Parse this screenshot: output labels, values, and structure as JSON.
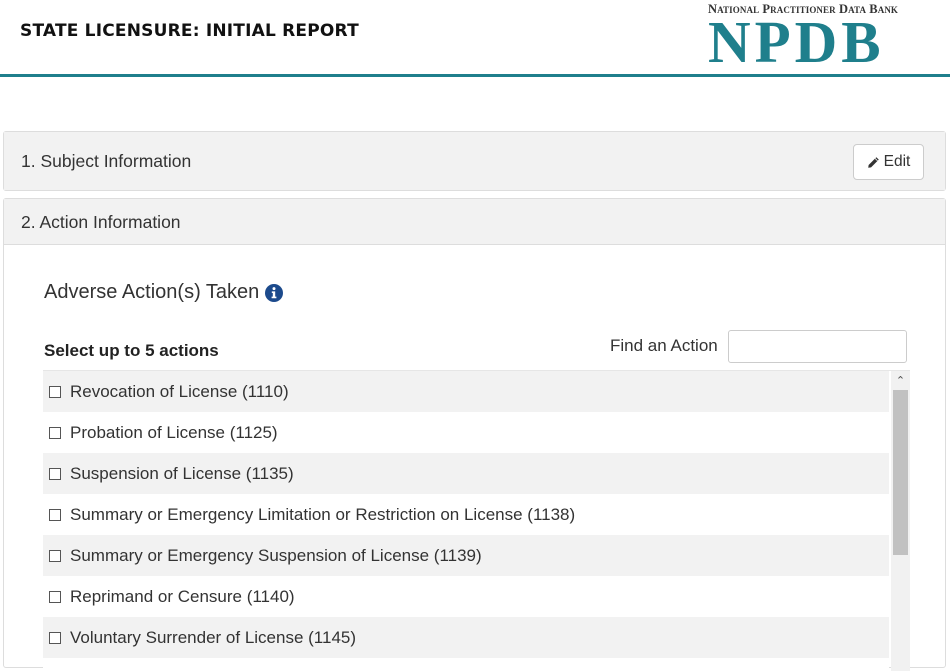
{
  "header": {
    "title": "STATE LICENSURE: INITIAL REPORT",
    "logo_subtitle": "National Practitioner Data Bank",
    "logo_text": "NPDB",
    "brand_color": "#1f7f8c"
  },
  "panels": {
    "subject": {
      "title": "1. Subject Information",
      "edit_label": "Edit",
      "edit_icon": "pencil-icon"
    },
    "action": {
      "title": "2. Action Information",
      "section_title": "Adverse Action(s) Taken",
      "info_icon": "info-icon",
      "select_label": "Select up to 5 actions",
      "find_label": "Find an Action",
      "find_value": "",
      "actions": [
        {
          "label": "Revocation of License (1110)",
          "checked": false
        },
        {
          "label": "Probation of License (1125)",
          "checked": false
        },
        {
          "label": "Suspension of License (1135)",
          "checked": false
        },
        {
          "label": "Summary or Emergency Limitation or Restriction on License (1138)",
          "checked": false
        },
        {
          "label": "Summary or Emergency Suspension of License (1139)",
          "checked": false
        },
        {
          "label": "Reprimand or Censure (1140)",
          "checked": false
        },
        {
          "label": "Voluntary Surrender of License (1145)",
          "checked": false
        },
        {
          "label": "",
          "checked": false
        }
      ]
    }
  }
}
